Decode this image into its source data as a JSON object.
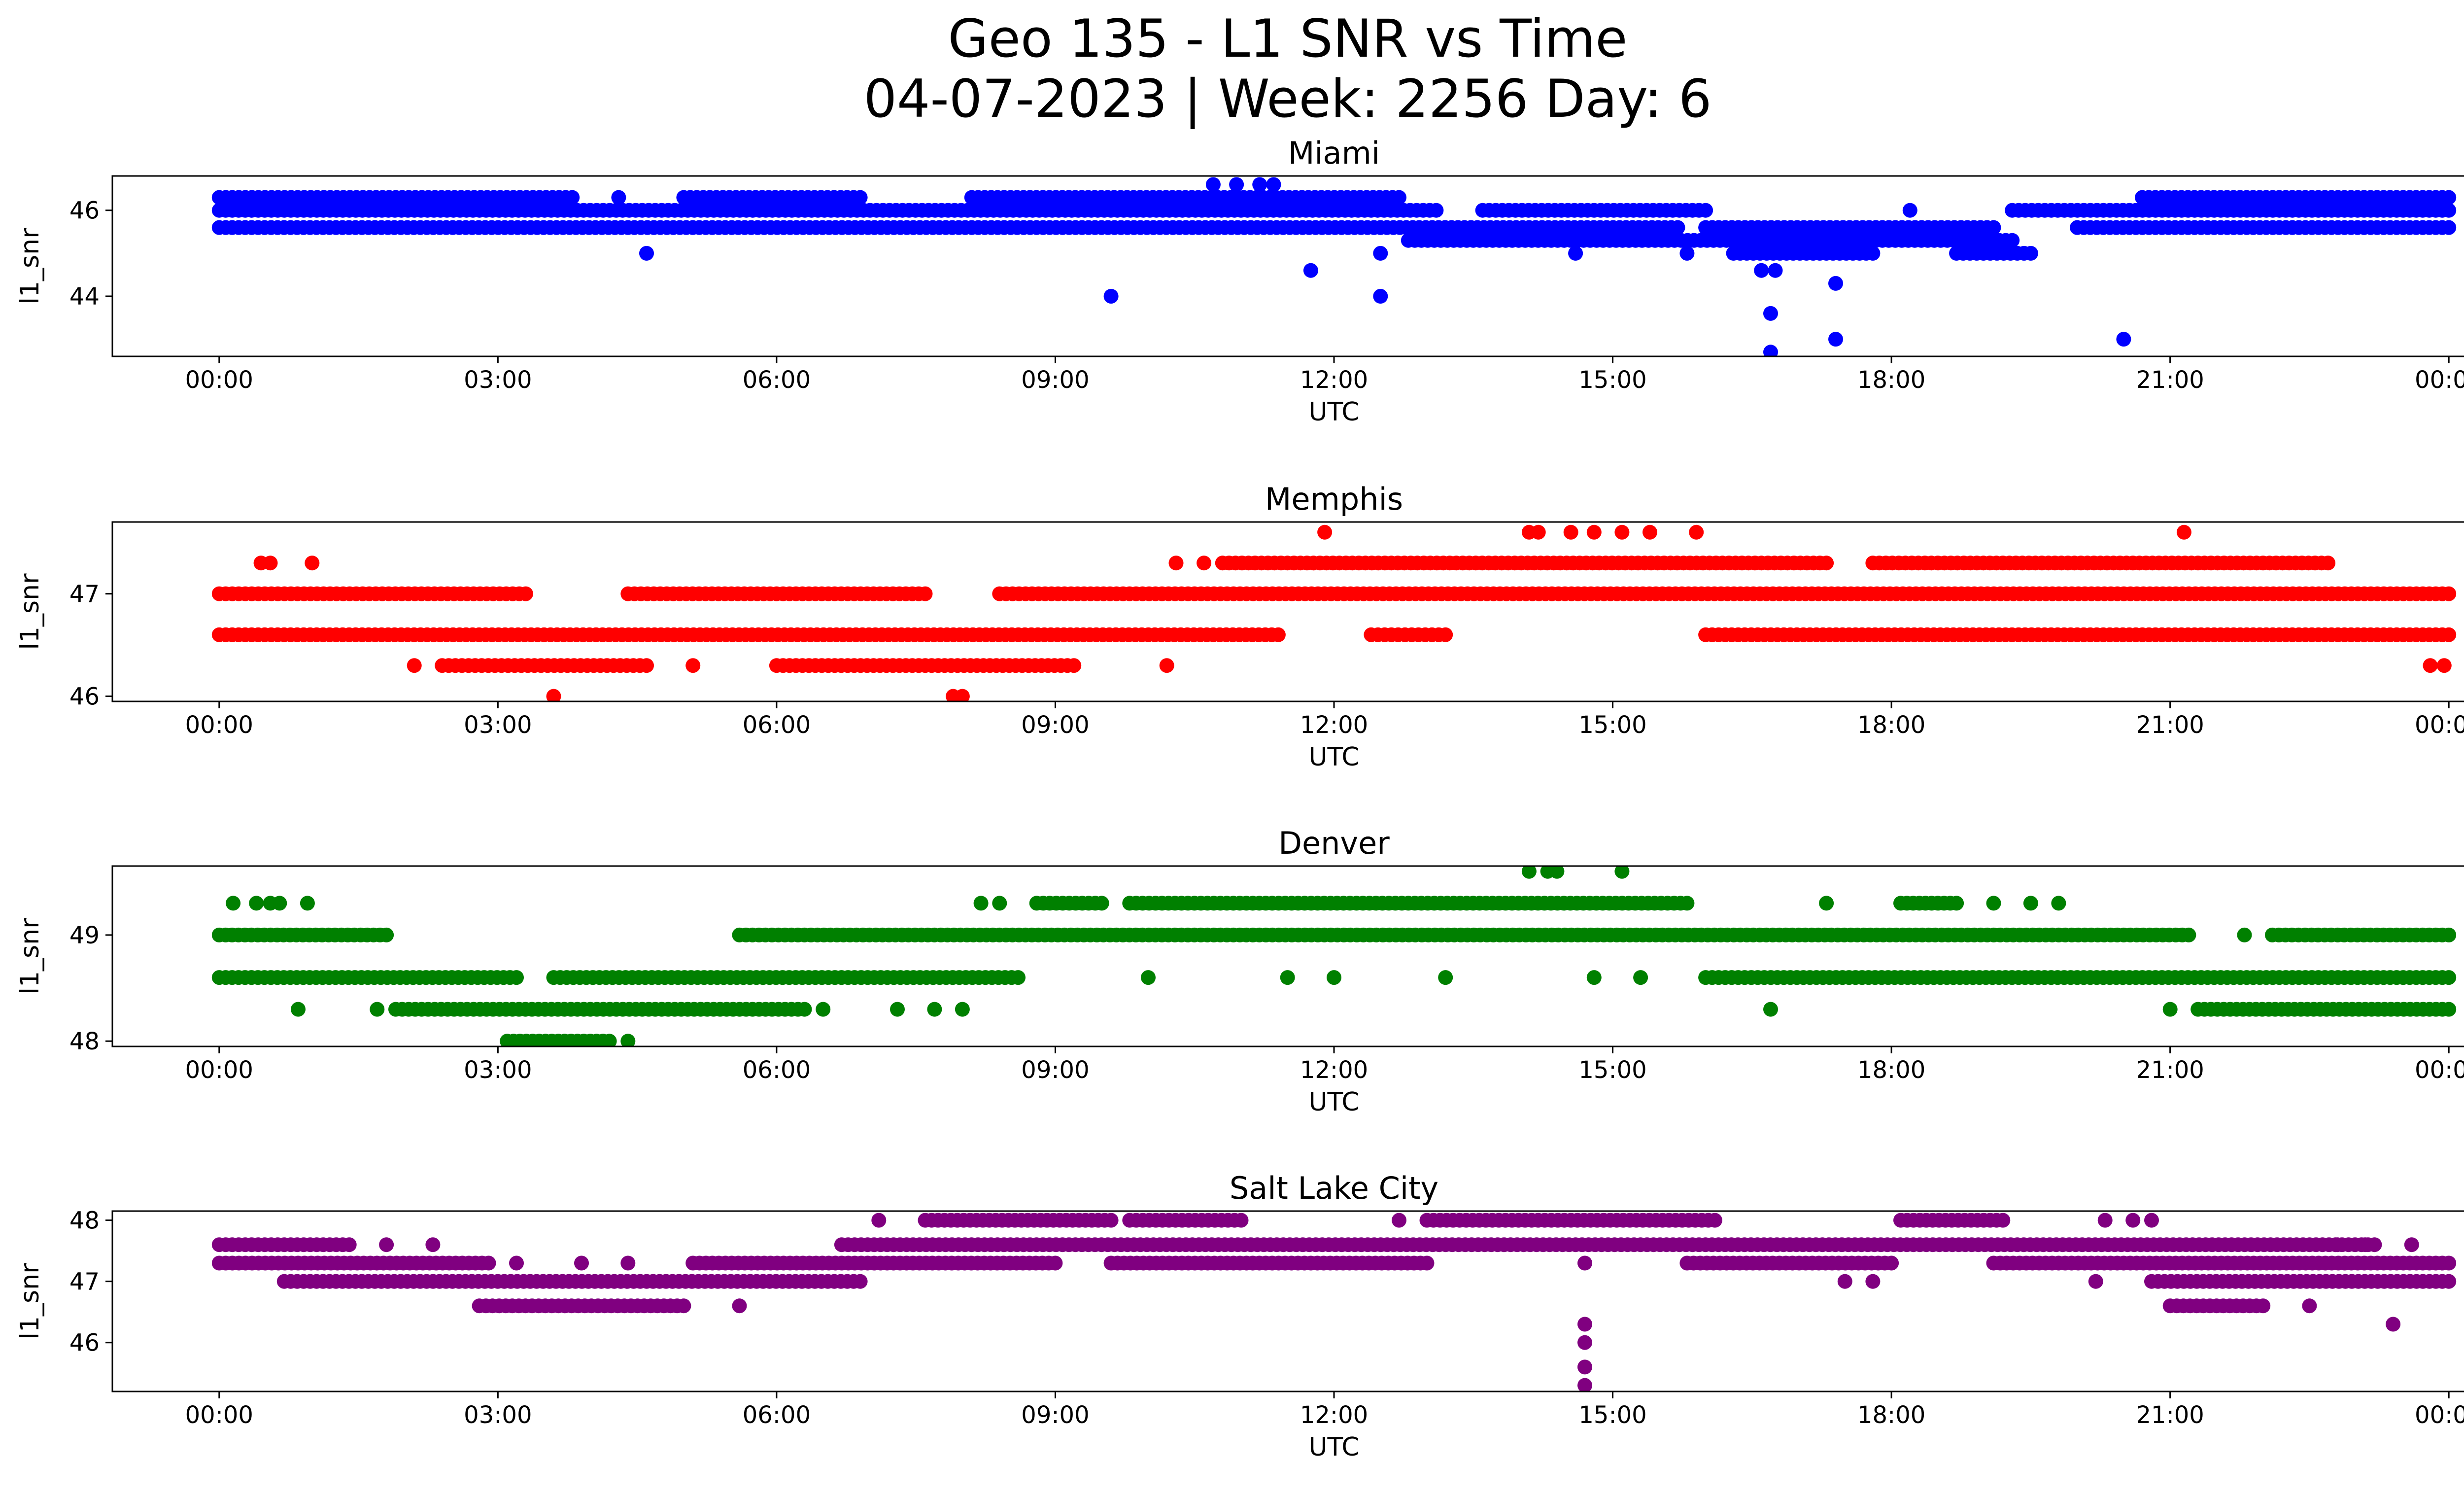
{
  "title_line1": "Geo 135 - L1 SNR vs Time",
  "title_line2": "04-07-2023 | Week: 2256 Day: 6",
  "x_tick_labels": [
    "00:00",
    "03:00",
    "06:00",
    "09:00",
    "12:00",
    "15:00",
    "18:00",
    "21:00",
    "00:00"
  ],
  "chart_data": [
    {
      "type": "scatter",
      "title": "Miami",
      "xlabel": "UTC",
      "ylabel": "l1_snr",
      "color": "#0000ff",
      "x_unit": "hours UTC",
      "xlim": [
        -1.15,
        25.15
      ],
      "ylim": [
        42.6,
        46.8
      ],
      "yticks": [
        44,
        46
      ],
      "levels": [
        46.3,
        46.0,
        45.6
      ],
      "bands": [
        {
          "y": 46.3,
          "segments": [
            [
              0,
              3.8
            ],
            [
              5.0,
              6.9
            ],
            [
              8.1,
              12.7
            ],
            [
              20.7,
              24
            ]
          ]
        },
        {
          "y": 46.0,
          "segments": [
            [
              0,
              13.1
            ],
            [
              13.6,
              16.0
            ],
            [
              19.3,
              24
            ]
          ]
        },
        {
          "y": 45.6,
          "segments": [
            [
              0,
              12.5
            ],
            [
              12.5,
              15.7
            ],
            [
              16.0,
              19.1
            ],
            [
              20.0,
              24
            ]
          ]
        },
        {
          "y": 45.3,
          "segments": [
            [
              12.8,
              19.3
            ]
          ]
        },
        {
          "y": 45.0,
          "segments": [
            [
              16.3,
              17.8
            ],
            [
              18.7,
              19.5
            ]
          ]
        }
      ],
      "outliers": [
        {
          "x": 4.6,
          "y": 45.0
        },
        {
          "x": 4.3,
          "y": 46.3
        },
        {
          "x": 9.6,
          "y": 44.0
        },
        {
          "x": 10.7,
          "y": 46.6
        },
        {
          "x": 10.95,
          "y": 46.6
        },
        {
          "x": 11.2,
          "y": 46.6
        },
        {
          "x": 11.35,
          "y": 46.6
        },
        {
          "x": 11.75,
          "y": 44.6
        },
        {
          "x": 12.5,
          "y": 45.0
        },
        {
          "x": 12.5,
          "y": 44.0
        },
        {
          "x": 14.6,
          "y": 45.0
        },
        {
          "x": 15.8,
          "y": 45.0
        },
        {
          "x": 16.6,
          "y": 44.6
        },
        {
          "x": 16.75,
          "y": 44.6
        },
        {
          "x": 16.7,
          "y": 43.6
        },
        {
          "x": 16.7,
          "y": 42.7
        },
        {
          "x": 17.4,
          "y": 44.3
        },
        {
          "x": 17.4,
          "y": 43.0
        },
        {
          "x": 18.2,
          "y": 46.0
        },
        {
          "x": 20.5,
          "y": 43.0
        }
      ]
    },
    {
      "type": "scatter",
      "title": "Memphis",
      "xlabel": "UTC",
      "ylabel": "l1_snr",
      "color": "#ff0000",
      "x_unit": "hours UTC",
      "xlim": [
        -1.15,
        25.15
      ],
      "ylim": [
        45.95,
        47.7
      ],
      "yticks": [
        46,
        47
      ],
      "bands": [
        {
          "y": 47.3,
          "segments": [
            [
              10.8,
              17.3
            ],
            [
              17.8,
              22.7
            ]
          ]
        },
        {
          "y": 47.0,
          "segments": [
            [
              0,
              3.3
            ],
            [
              4.4,
              7.6
            ],
            [
              8.4,
              24
            ]
          ]
        },
        {
          "y": 46.6,
          "segments": [
            [
              0,
              11.4
            ],
            [
              12.4,
              13.2
            ],
            [
              16.0,
              24
            ]
          ]
        },
        {
          "y": 46.3,
          "segments": [
            [
              2.4,
              4.6
            ],
            [
              6.0,
              9.2
            ]
          ]
        }
      ],
      "outliers": [
        {
          "x": 0.45,
          "y": 47.3
        },
        {
          "x": 0.55,
          "y": 47.3
        },
        {
          "x": 1.0,
          "y": 47.3
        },
        {
          "x": 10.3,
          "y": 47.3
        },
        {
          "x": 10.6,
          "y": 47.3
        },
        {
          "x": 11.9,
          "y": 47.6
        },
        {
          "x": 14.1,
          "y": 47.6
        },
        {
          "x": 14.2,
          "y": 47.6
        },
        {
          "x": 14.55,
          "y": 47.6
        },
        {
          "x": 14.8,
          "y": 47.6
        },
        {
          "x": 15.1,
          "y": 47.6
        },
        {
          "x": 15.4,
          "y": 47.6
        },
        {
          "x": 15.9,
          "y": 47.6
        },
        {
          "x": 21.15,
          "y": 47.6
        },
        {
          "x": 2.1,
          "y": 46.3
        },
        {
          "x": 5.1,
          "y": 46.3
        },
        {
          "x": 10.2,
          "y": 46.3
        },
        {
          "x": 3.6,
          "y": 46.0
        },
        {
          "x": 7.9,
          "y": 46.0
        },
        {
          "x": 8.0,
          "y": 46.0
        },
        {
          "x": 23.8,
          "y": 46.3
        },
        {
          "x": 23.95,
          "y": 46.3
        }
      ]
    },
    {
      "type": "scatter",
      "title": "Denver",
      "xlabel": "UTC",
      "ylabel": "l1_snr",
      "color": "#008000",
      "x_unit": "hours UTC",
      "xlim": [
        -1.15,
        25.15
      ],
      "ylim": [
        47.95,
        49.65
      ],
      "yticks": [
        48,
        49
      ],
      "bands": [
        {
          "y": 49.3,
          "segments": [
            [
              8.8,
              9.5
            ],
            [
              9.8,
              15.8
            ],
            [
              18.1,
              18.7
            ]
          ]
        },
        {
          "y": 49.0,
          "segments": [
            [
              0,
              1.8
            ],
            [
              5.6,
              21.2
            ],
            [
              22.1,
              24
            ]
          ]
        },
        {
          "y": 48.6,
          "segments": [
            [
              0,
              3.2
            ],
            [
              3.6,
              8.6
            ],
            [
              16.0,
              24
            ]
          ]
        },
        {
          "y": 48.3,
          "segments": [
            [
              1.9,
              6.3
            ],
            [
              21.3,
              24
            ]
          ]
        },
        {
          "y": 48.0,
          "segments": [
            [
              3.1,
              4.2
            ]
          ]
        }
      ],
      "outliers": [
        {
          "x": 0.15,
          "y": 49.3
        },
        {
          "x": 0.4,
          "y": 49.3
        },
        {
          "x": 0.55,
          "y": 49.3
        },
        {
          "x": 0.65,
          "y": 49.3
        },
        {
          "x": 0.95,
          "y": 49.3
        },
        {
          "x": 8.2,
          "y": 49.3
        },
        {
          "x": 8.4,
          "y": 49.3
        },
        {
          "x": 14.1,
          "y": 49.6
        },
        {
          "x": 14.3,
          "y": 49.6
        },
        {
          "x": 14.4,
          "y": 49.6
        },
        {
          "x": 15.1,
          "y": 49.6
        },
        {
          "x": 17.3,
          "y": 49.3
        },
        {
          "x": 19.1,
          "y": 49.3
        },
        {
          "x": 19.5,
          "y": 49.3
        },
        {
          "x": 19.8,
          "y": 49.3
        },
        {
          "x": 0.85,
          "y": 48.3
        },
        {
          "x": 1.7,
          "y": 48.3
        },
        {
          "x": 4.4,
          "y": 48.0
        },
        {
          "x": 6.5,
          "y": 48.3
        },
        {
          "x": 7.3,
          "y": 48.3
        },
        {
          "x": 7.7,
          "y": 48.3
        },
        {
          "x": 8.0,
          "y": 48.3
        },
        {
          "x": 13.2,
          "y": 48.6
        },
        {
          "x": 14.8,
          "y": 48.6
        },
        {
          "x": 15.3,
          "y": 48.6
        },
        {
          "x": 16.7,
          "y": 48.3
        },
        {
          "x": 21.0,
          "y": 48.3
        },
        {
          "x": 10.0,
          "y": 48.6
        },
        {
          "x": 11.5,
          "y": 48.6
        },
        {
          "x": 12.0,
          "y": 48.6
        },
        {
          "x": 21.8,
          "y": 49.0
        }
      ]
    },
    {
      "type": "scatter",
      "title": "Salt Lake City",
      "xlabel": "UTC",
      "ylabel": "l1_snr",
      "color": "#800080",
      "x_unit": "hours UTC",
      "xlim": [
        -1.15,
        25.15
      ],
      "ylim": [
        45.2,
        48.15
      ],
      "yticks": [
        46,
        47,
        48
      ],
      "bands": [
        {
          "y": 48.0,
          "segments": [
            [
              7.6,
              9.6
            ],
            [
              9.8,
              11.0
            ],
            [
              13.0,
              16.1
            ],
            [
              18.1,
              19.2
            ]
          ]
        },
        {
          "y": 47.6,
          "segments": [
            [
              0,
              1.4
            ],
            [
              6.7,
              23.2
            ]
          ]
        },
        {
          "y": 47.3,
          "segments": [
            [
              0,
              2.9
            ],
            [
              5.1,
              9.0
            ],
            [
              9.6,
              13.0
            ],
            [
              15.8,
              18.0
            ],
            [
              19.1,
              24
            ]
          ]
        },
        {
          "y": 47.0,
          "segments": [
            [
              0.7,
              6.9
            ],
            [
              20.8,
              24
            ]
          ]
        },
        {
          "y": 46.6,
          "segments": [
            [
              2.8,
              5.0
            ],
            [
              21.0,
              22.0
            ]
          ]
        }
      ],
      "outliers": [
        {
          "x": 7.1,
          "y": 48.0
        },
        {
          "x": 12.7,
          "y": 48.0
        },
        {
          "x": 20.3,
          "y": 48.0
        },
        {
          "x": 20.6,
          "y": 48.0
        },
        {
          "x": 20.8,
          "y": 48.0
        },
        {
          "x": 1.8,
          "y": 47.6
        },
        {
          "x": 2.3,
          "y": 47.6
        },
        {
          "x": 22.8,
          "y": 47.6
        },
        {
          "x": 23.1,
          "y": 47.6
        },
        {
          "x": 23.6,
          "y": 47.6
        },
        {
          "x": 14.7,
          "y": 47.3
        },
        {
          "x": 17.5,
          "y": 47.0
        },
        {
          "x": 17.8,
          "y": 47.0
        },
        {
          "x": 20.2,
          "y": 47.0
        },
        {
          "x": 5.6,
          "y": 46.6
        },
        {
          "x": 22.5,
          "y": 46.6
        },
        {
          "x": 23.4,
          "y": 46.3
        },
        {
          "x": 14.7,
          "y": 46.3
        },
        {
          "x": 14.7,
          "y": 46.0
        },
        {
          "x": 14.7,
          "y": 45.6
        },
        {
          "x": 14.7,
          "y": 45.3
        },
        {
          "x": 3.2,
          "y": 47.3
        },
        {
          "x": 3.9,
          "y": 47.3
        },
        {
          "x": 4.4,
          "y": 47.3
        }
      ]
    }
  ]
}
